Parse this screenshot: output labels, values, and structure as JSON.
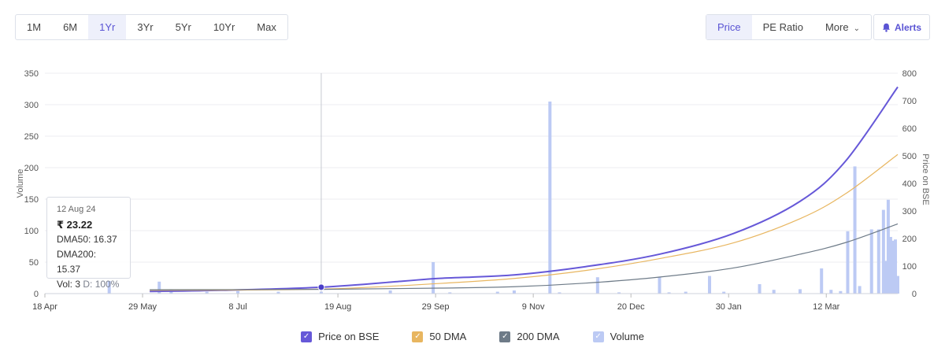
{
  "range_buttons": [
    "1M",
    "6M",
    "1Yr",
    "3Yr",
    "5Yr",
    "10Yr",
    "Max"
  ],
  "range_active": "1Yr",
  "metric_buttons": {
    "price": "Price",
    "pe_ratio": "PE Ratio",
    "more": "More"
  },
  "alerts": {
    "label": "Alerts",
    "icon": "bell-icon"
  },
  "colors": {
    "price": "#6658d8",
    "dma50": "#e8b660",
    "dma200": "#6e7b88",
    "volume": "#bccaf4",
    "hover_point": "#4a3fc8"
  },
  "tooltip": {
    "date": "12 Aug 24",
    "price": "₹ 23.22",
    "dma50": "DMA50: 16.37",
    "dma200": "DMA200: 15.37",
    "vol_label": "Vol: 3",
    "delivery": "D: 100%"
  },
  "legend": [
    {
      "key": "price",
      "label": "Price on BSE"
    },
    {
      "key": "dma50",
      "label": "50 DMA"
    },
    {
      "key": "dma200",
      "label": "200 DMA"
    },
    {
      "key": "volume",
      "label": "Volume"
    }
  ],
  "chart_data": {
    "type": "line",
    "x_range": [
      "2024-04-18",
      "2025-04-11"
    ],
    "x_ticks": [
      {
        "label": "18 Apr",
        "date": "2024-04-18"
      },
      {
        "label": "29 May",
        "date": "2024-05-29"
      },
      {
        "label": "8 Jul",
        "date": "2024-07-08"
      },
      {
        "label": "19 Aug",
        "date": "2024-08-19"
      },
      {
        "label": "29 Sep",
        "date": "2024-09-29"
      },
      {
        "label": "9 Nov",
        "date": "2024-11-09"
      },
      {
        "label": "20 Dec",
        "date": "2024-12-20"
      },
      {
        "label": "30 Jan",
        "date": "2025-01-30"
      },
      {
        "label": "12 Mar",
        "date": "2025-03-12"
      }
    ],
    "ylabel_left": "Volume",
    "ylim_left": [
      0,
      350
    ],
    "yticks_left": [
      0,
      50,
      100,
      150,
      200,
      250,
      300,
      350
    ],
    "ylabel_right": "Price on BSE",
    "ylim_right": [
      0,
      800
    ],
    "yticks_right": [
      0,
      100,
      200,
      300,
      400,
      500,
      600,
      700,
      800
    ],
    "grid": true,
    "hover_date": "2024-08-12",
    "series": [
      {
        "name": "Price on BSE",
        "key": "price",
        "axis": "right",
        "points": [
          [
            "2024-06-01",
            8
          ],
          [
            "2024-07-01",
            12
          ],
          [
            "2024-08-12",
            23.22
          ],
          [
            "2024-09-15",
            45
          ],
          [
            "2024-09-30",
            55
          ],
          [
            "2024-11-01",
            68
          ],
          [
            "2024-12-01",
            98
          ],
          [
            "2025-01-01",
            143
          ],
          [
            "2025-02-01",
            218
          ],
          [
            "2025-03-01",
            335
          ],
          [
            "2025-03-20",
            480
          ],
          [
            "2025-04-11",
            750
          ]
        ]
      },
      {
        "name": "50 DMA",
        "key": "dma50",
        "axis": "right",
        "points": [
          [
            "2024-06-01",
            12
          ],
          [
            "2024-08-12",
            16.37
          ],
          [
            "2024-10-01",
            37
          ],
          [
            "2024-11-01",
            55
          ],
          [
            "2024-12-01",
            84
          ],
          [
            "2025-01-01",
            127
          ],
          [
            "2025-02-01",
            184
          ],
          [
            "2025-03-01",
            272
          ],
          [
            "2025-03-20",
            362
          ],
          [
            "2025-04-11",
            505
          ]
        ]
      },
      {
        "name": "200 DMA",
        "key": "dma200",
        "axis": "right",
        "points": [
          [
            "2024-06-01",
            14
          ],
          [
            "2024-08-12",
            15.37
          ],
          [
            "2024-10-01",
            20
          ],
          [
            "2024-11-01",
            25
          ],
          [
            "2024-12-01",
            38
          ],
          [
            "2025-01-01",
            60
          ],
          [
            "2025-02-01",
            93
          ],
          [
            "2025-03-01",
            143
          ],
          [
            "2025-03-20",
            185
          ],
          [
            "2025-04-11",
            253
          ]
        ]
      },
      {
        "name": "Volume",
        "key": "volume",
        "type": "bar",
        "axis": "left",
        "points": [
          [
            "2024-05-15",
            20
          ],
          [
            "2024-06-05",
            19
          ],
          [
            "2024-06-10",
            7
          ],
          [
            "2024-06-25",
            3
          ],
          [
            "2024-07-08",
            4
          ],
          [
            "2024-07-25",
            3
          ],
          [
            "2024-08-12",
            3
          ],
          [
            "2024-09-10",
            5
          ],
          [
            "2024-09-28",
            50
          ],
          [
            "2024-10-05",
            2
          ],
          [
            "2024-10-25",
            3
          ],
          [
            "2024-11-01",
            5
          ],
          [
            "2024-11-16",
            305
          ],
          [
            "2024-11-20",
            2
          ],
          [
            "2024-12-06",
            26
          ],
          [
            "2024-12-15",
            2
          ],
          [
            "2025-01-01",
            27
          ],
          [
            "2025-01-05",
            2
          ],
          [
            "2025-01-12",
            3
          ],
          [
            "2025-01-22",
            28
          ],
          [
            "2025-01-28",
            3
          ],
          [
            "2025-02-12",
            15
          ],
          [
            "2025-02-18",
            6
          ],
          [
            "2025-03-01",
            7
          ],
          [
            "2025-03-10",
            40
          ],
          [
            "2025-03-14",
            6
          ],
          [
            "2025-03-18",
            4
          ],
          [
            "2025-03-21",
            99
          ],
          [
            "2025-03-24",
            202
          ],
          [
            "2025-03-26",
            12
          ],
          [
            "2025-03-31",
            102
          ],
          [
            "2025-04-03",
            102
          ],
          [
            "2025-04-05",
            133
          ],
          [
            "2025-04-06",
            52
          ],
          [
            "2025-04-07",
            149
          ],
          [
            "2025-04-08",
            90
          ],
          [
            "2025-04-09",
            84
          ],
          [
            "2025-04-09",
            40
          ],
          [
            "2025-04-10",
            86
          ],
          [
            "2025-04-10",
            20
          ],
          [
            "2025-04-10",
            70
          ],
          [
            "2025-04-11",
            26
          ],
          [
            "2025-04-11",
            28
          ]
        ]
      }
    ]
  }
}
